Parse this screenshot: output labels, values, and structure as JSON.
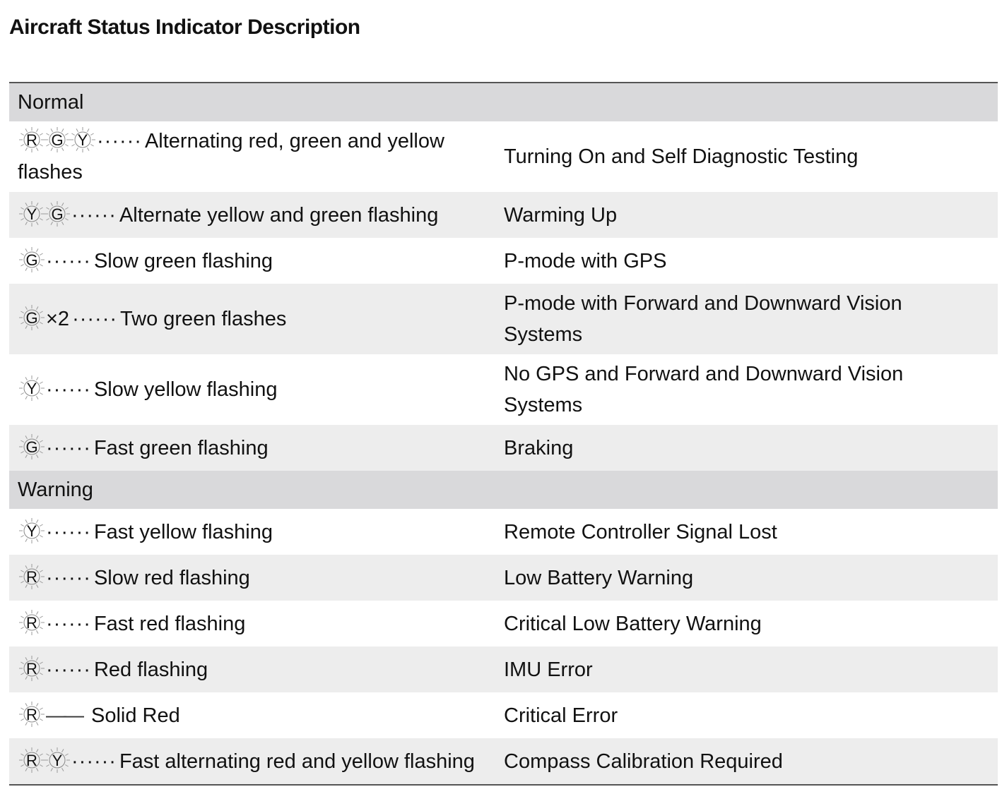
{
  "title": "Aircraft Status Indicator Description",
  "sections": [
    {
      "name": "Normal",
      "rows": [
        {
          "leds": [
            "R",
            "G",
            "Y"
          ],
          "suffix": "",
          "connector": "······",
          "description": "Alternating red, green and yellow flashes",
          "meaning": "Turning On and Self Diagnostic Testing",
          "tall": true
        },
        {
          "leds": [
            "Y",
            "G"
          ],
          "suffix": "",
          "connector": "······",
          "description": "Alternate yellow and green flashing",
          "meaning": "Warming Up"
        },
        {
          "leds": [
            "G"
          ],
          "suffix": "",
          "connector": "······",
          "description": "Slow green flashing",
          "meaning": "P-mode with GPS"
        },
        {
          "leds": [
            "G"
          ],
          "suffix": "×2",
          "connector": "······",
          "description": "Two green flashes",
          "meaning": "P-mode with Forward and Downward Vision Systems",
          "tall": true
        },
        {
          "leds": [
            "Y"
          ],
          "suffix": "",
          "connector": "······",
          "description": "Slow yellow flashing",
          "meaning": "No GPS and Forward and Downward Vision Systems",
          "tall": true
        },
        {
          "leds": [
            "G"
          ],
          "suffix": "",
          "connector": "······",
          "description": "Fast green flashing",
          "meaning": "Braking"
        }
      ]
    },
    {
      "name": "Warning",
      "rows": [
        {
          "leds": [
            "Y"
          ],
          "suffix": "",
          "connector": "······",
          "description": "Fast yellow flashing",
          "meaning": "Remote Controller Signal Lost"
        },
        {
          "leds": [
            "R"
          ],
          "suffix": "",
          "connector": "······",
          "description": "Slow red flashing",
          "meaning": "Low Battery Warning"
        },
        {
          "leds": [
            "R"
          ],
          "suffix": "",
          "connector": "······",
          "description": "Fast red flashing",
          "meaning": "Critical Low Battery Warning"
        },
        {
          "leds": [
            "R"
          ],
          "suffix": "",
          "connector": "······",
          "description": "Red flashing",
          "meaning": "IMU Error"
        },
        {
          "leds": [
            "R"
          ],
          "suffix": "",
          "connector": "——",
          "description": "Solid Red",
          "meaning": "Critical Error"
        },
        {
          "leds": [
            "R",
            "Y"
          ],
          "suffix": "",
          "connector": "······",
          "description": "Fast alternating red and yellow flashing",
          "meaning": "Compass Calibration Required"
        }
      ]
    }
  ]
}
